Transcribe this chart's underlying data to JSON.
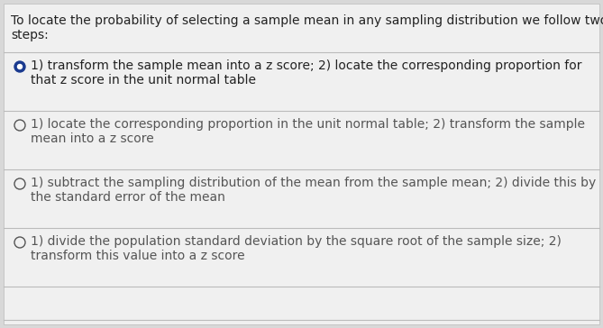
{
  "question_line1": "To locate the probability of selecting a sample mean in any sampling distribution we follow two",
  "question_line2": "steps:",
  "options": [
    {
      "line1": "1) transform the sample mean into a z score; 2) locate the corresponding proportion for",
      "line2": "that z score in the unit normal table",
      "selected": true
    },
    {
      "line1": "1) locate the corresponding proportion in the unit normal table; 2) transform the sample",
      "line2": "mean into a z score",
      "selected": false
    },
    {
      "line1": "1) subtract the sampling distribution of the mean from the sample mean; 2) divide this by",
      "line2": "the standard error of the mean",
      "selected": false
    },
    {
      "line1": "1) divide the population standard deviation by the square root of the sample size; 2)",
      "line2": "transform this value into a z score",
      "selected": false
    }
  ],
  "bg_color": "#d8d8d8",
  "panel_color": "#f0f0f0",
  "text_color": "#222222",
  "selected_color": "#1a3a8f",
  "unselected_color": "#555555",
  "divider_color": "#bbbbbb",
  "question_fontsize": 10.0,
  "option_fontsize": 10.0
}
